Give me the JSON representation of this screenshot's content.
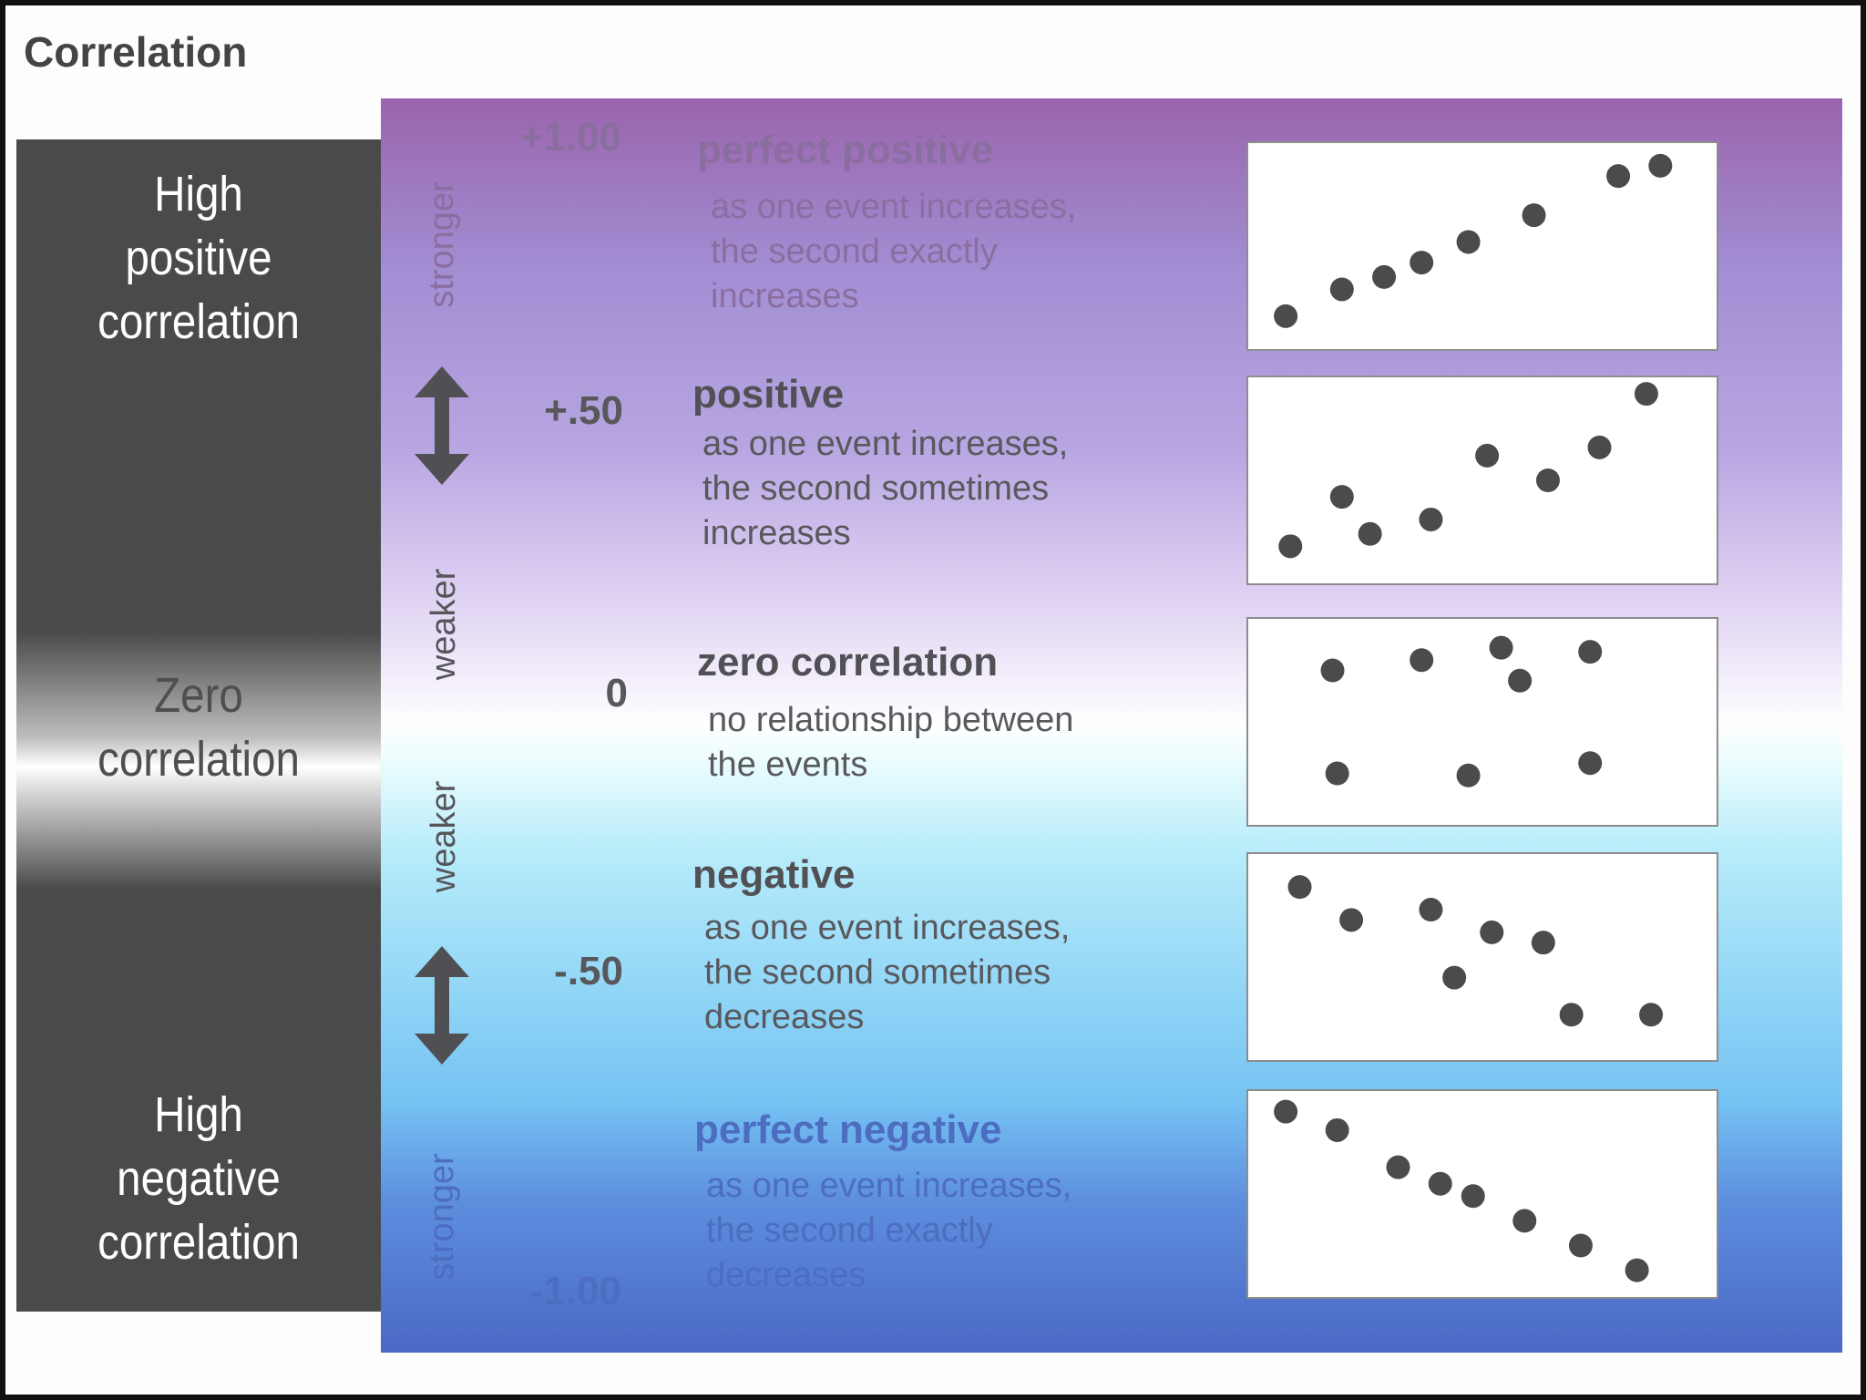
{
  "title": "Correlation",
  "left_labels": {
    "high_positive": [
      "High",
      "positive",
      "correlation"
    ],
    "zero": [
      "Zero",
      "correlation"
    ],
    "high_negative": [
      "High",
      "negative",
      "correlation"
    ]
  },
  "strength_words": {
    "upper_stronger": "stronger",
    "upper_weaker": "weaker",
    "lower_weaker": "weaker",
    "lower_stronger": "stronger"
  },
  "icons": {
    "upper_arrow": "double-headed-arrow-icon",
    "lower_arrow": "double-headed-arrow-icon"
  },
  "scale": {
    "plus_one": "+1.00",
    "plus_half": "+.50",
    "zero": "0",
    "minus_half": "-.50",
    "minus_one": "-1.00"
  },
  "rows": [
    {
      "title": "perfect positive",
      "lines": [
        "as one event increases,",
        "the second exactly",
        "increases"
      ]
    },
    {
      "title": "positive",
      "lines": [
        "as one event increases,",
        "the second sometimes",
        "increases"
      ]
    },
    {
      "title": "zero correlation",
      "lines": [
        "no relationship between",
        "the events"
      ]
    },
    {
      "title": "negative",
      "lines": [
        "as one event increases,",
        "the second sometimes",
        "decreases"
      ]
    },
    {
      "title": "perfect negative",
      "lines": [
        "as one event increases,",
        "the second exactly",
        "decreases"
      ]
    }
  ],
  "colors": {
    "dot": "#4b4b4d",
    "band": "#4a4a4b",
    "text": "#555559"
  },
  "chart_data": [
    {
      "type": "scatter",
      "title": "perfect positive",
      "xlim": [
        0,
        10
      ],
      "ylim": [
        0,
        10
      ],
      "points": [
        [
          0.8,
          1.6
        ],
        [
          2.0,
          2.9
        ],
        [
          2.9,
          3.5
        ],
        [
          3.7,
          4.2
        ],
        [
          4.7,
          5.2
        ],
        [
          6.1,
          6.5
        ],
        [
          7.9,
          8.4
        ],
        [
          8.8,
          8.9
        ]
      ]
    },
    {
      "type": "scatter",
      "title": "positive",
      "xlim": [
        0,
        10
      ],
      "ylim": [
        0,
        10
      ],
      "points": [
        [
          0.9,
          1.8
        ],
        [
          2.0,
          4.2
        ],
        [
          2.6,
          2.4
        ],
        [
          3.9,
          3.1
        ],
        [
          5.1,
          6.2
        ],
        [
          6.4,
          5.0
        ],
        [
          7.5,
          6.6
        ],
        [
          8.5,
          9.2
        ]
      ]
    },
    {
      "type": "scatter",
      "title": "zero correlation",
      "xlim": [
        0,
        10
      ],
      "ylim": [
        0,
        10
      ],
      "points": [
        [
          1.8,
          7.5
        ],
        [
          3.7,
          8.0
        ],
        [
          5.4,
          8.6
        ],
        [
          5.8,
          7.0
        ],
        [
          7.3,
          8.4
        ],
        [
          1.9,
          2.5
        ],
        [
          4.7,
          2.4
        ],
        [
          7.3,
          3.0
        ]
      ]
    },
    {
      "type": "scatter",
      "title": "negative",
      "xlim": [
        0,
        10
      ],
      "ylim": [
        0,
        10
      ],
      "points": [
        [
          1.1,
          8.4
        ],
        [
          2.2,
          6.8
        ],
        [
          3.9,
          7.3
        ],
        [
          4.4,
          4.0
        ],
        [
          5.2,
          6.2
        ],
        [
          6.3,
          5.7
        ],
        [
          6.9,
          2.2
        ],
        [
          8.6,
          2.2
        ]
      ]
    },
    {
      "type": "scatter",
      "title": "perfect negative",
      "xlim": [
        0,
        10
      ],
      "ylim": [
        0,
        10
      ],
      "points": [
        [
          0.8,
          9.0
        ],
        [
          1.9,
          8.1
        ],
        [
          3.2,
          6.3
        ],
        [
          4.1,
          5.5
        ],
        [
          4.8,
          4.9
        ],
        [
          5.9,
          3.7
        ],
        [
          7.1,
          2.5
        ],
        [
          8.3,
          1.3
        ]
      ]
    }
  ]
}
